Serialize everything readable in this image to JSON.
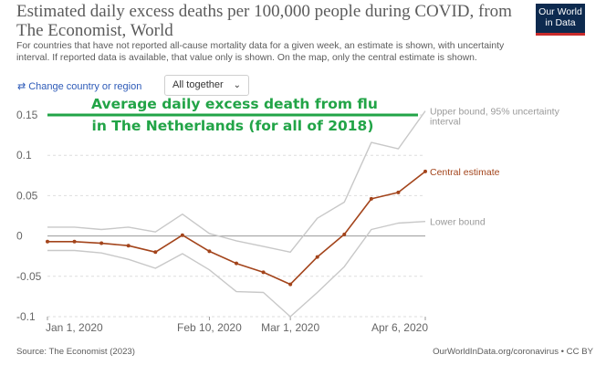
{
  "header": {
    "title": "Estimated daily excess deaths per 100,000 people during COVID, from The Economist, World",
    "subtitle": "For countries that have not reported all-cause mortality data for a given week, an estimate is shown, with uncertainty interval. If reported data is available, that value only is shown. On the map, only the central estimate is shown.",
    "logo": {
      "line1": "Our World",
      "line2": "in Data"
    }
  },
  "controls": {
    "change_country": "Change country or region",
    "change_icon": "swap-arrows-icon",
    "selector_value": "All together",
    "selector_icon": "chevron-down-icon"
  },
  "footer": {
    "source": "Source: The Economist (2023)",
    "license": "OurWorldInData.org/coronavirus • CC BY"
  },
  "annotation": {
    "line1": "Average daily excess death from flu",
    "line2": "in The Netherlands (for all of 2018)",
    "value": 0.15,
    "color": "#22a447"
  },
  "chart_data": {
    "type": "line",
    "xlabel": "",
    "ylabel": "",
    "ylim": [
      -0.1,
      0.15
    ],
    "grid": true,
    "y_ticks": [
      {
        "value": 0.15,
        "label": "0.15"
      },
      {
        "value": 0.1,
        "label": "0.1"
      },
      {
        "value": 0.05,
        "label": "0.05"
      },
      {
        "value": 0,
        "label": "0"
      },
      {
        "value": -0.05,
        "label": "-0.05"
      },
      {
        "value": -0.1,
        "label": "-0.1"
      }
    ],
    "x_ticks": [
      {
        "index": 0,
        "label": "Jan 1, 2020"
      },
      {
        "index": 6,
        "label": "Feb 10, 2020"
      },
      {
        "index": 9,
        "label": "Mar 1, 2020"
      },
      {
        "index": 14,
        "label": "Apr 6, 2020"
      }
    ],
    "x": [
      "2020-01-01",
      "2020-01-08",
      "2020-01-15",
      "2020-01-22",
      "2020-01-29",
      "2020-02-05",
      "2020-02-12",
      "2020-02-19",
      "2020-02-26",
      "2020-03-04",
      "2020-03-11",
      "2020-03-18",
      "2020-03-25",
      "2020-04-01",
      "2020-04-08"
    ],
    "series": [
      {
        "name": "Upper bound, 95% uncertainty interval",
        "color": "#c8c8c8",
        "values": [
          0.011,
          0.011,
          0.008,
          0.011,
          0.005,
          0.027,
          0.003,
          -0.006,
          -0.013,
          -0.02,
          0.022,
          0.042,
          0.116,
          0.108,
          0.155
        ]
      },
      {
        "name": "Central estimate",
        "color": "#a3441b",
        "values": [
          -0.007,
          -0.007,
          -0.009,
          -0.012,
          -0.02,
          0.001,
          -0.019,
          -0.034,
          -0.045,
          -0.06,
          -0.026,
          0.002,
          0.046,
          0.054,
          0.08
        ]
      },
      {
        "name": "Lower bound",
        "color": "#c8c8c8",
        "values": [
          -0.018,
          -0.018,
          -0.021,
          -0.029,
          -0.04,
          -0.022,
          -0.042,
          -0.069,
          -0.07,
          -0.1,
          -0.07,
          -0.038,
          0.008,
          0.016,
          0.018
        ]
      }
    ]
  }
}
